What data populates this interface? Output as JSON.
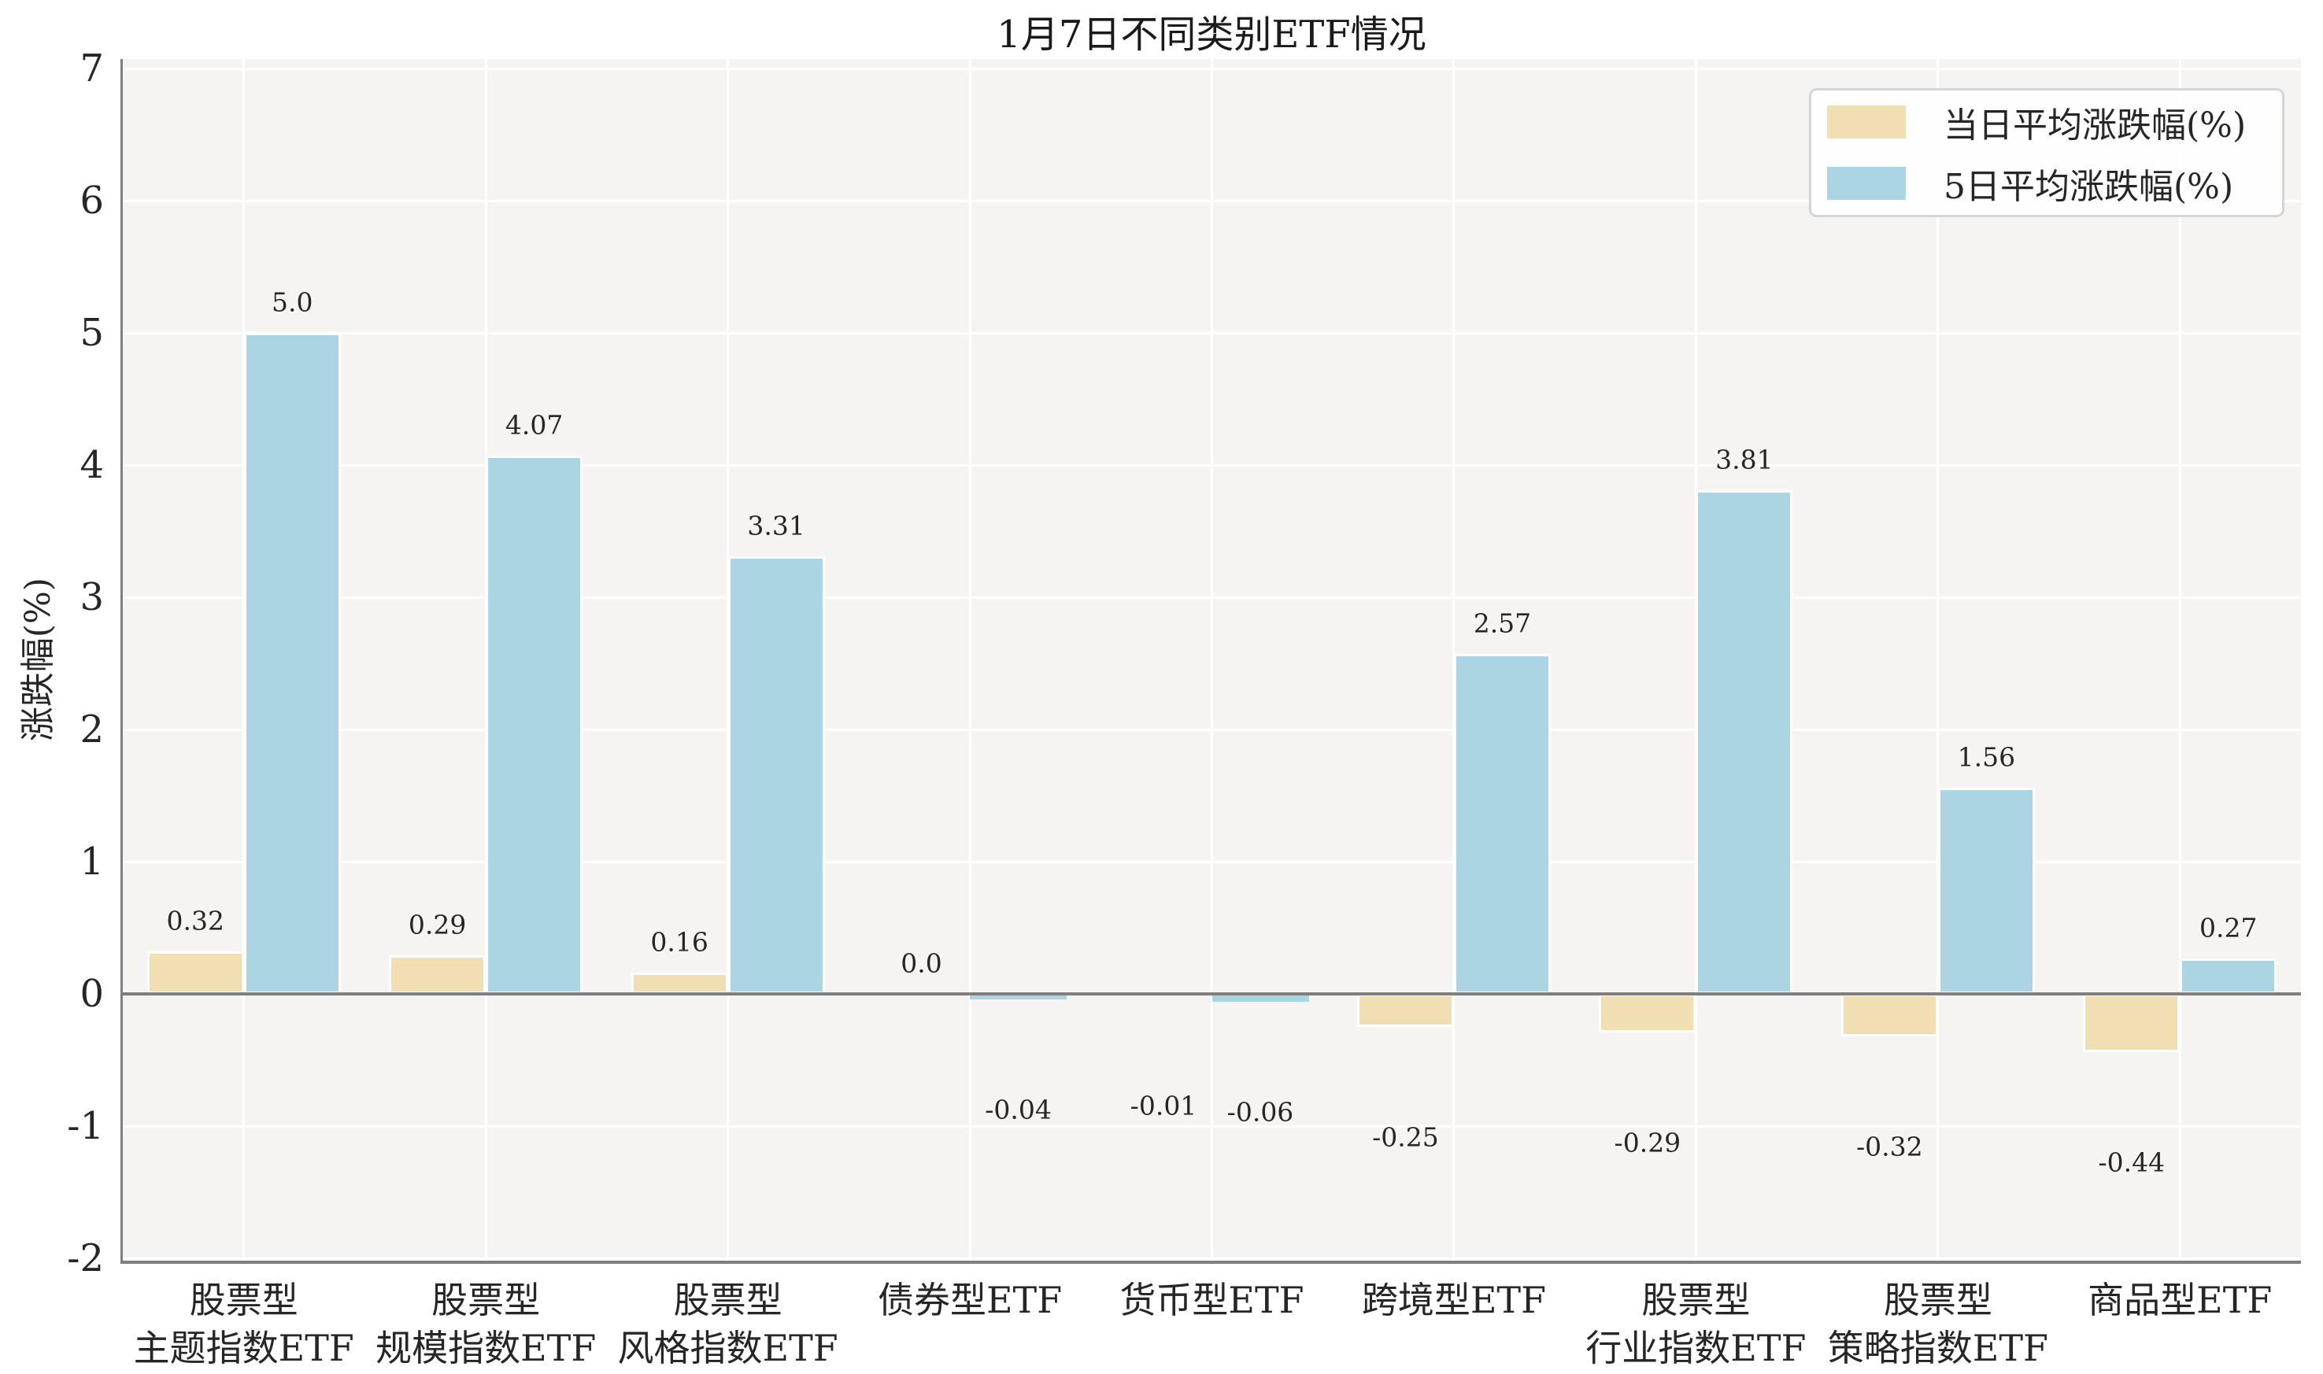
{
  "chart_data": {
    "type": "bar",
    "title": "1月7日不同类别ETF情况",
    "ylabel": "涨跌幅(%)",
    "xlabel": "",
    "categories": [
      [
        "股票型",
        "主题指数ETF"
      ],
      [
        "股票型",
        "规模指数ETF"
      ],
      [
        "股票型",
        "风格指数ETF"
      ],
      [
        "债券型ETF"
      ],
      [
        "货币型ETF"
      ],
      [
        "跨境型ETF"
      ],
      [
        "股票型",
        "行业指数ETF"
      ],
      [
        "股票型",
        "策略指数ETF"
      ],
      [
        "商品型ETF"
      ]
    ],
    "series": [
      {
        "name": "当日平均涨跌幅(%)",
        "color": "#f2deb3",
        "values": [
          0.32,
          0.29,
          0.16,
          0.0,
          -0.01,
          -0.25,
          -0.29,
          -0.32,
          -0.44
        ],
        "labels": [
          "0.32",
          "0.29",
          "0.16",
          "0.0",
          "-0.01",
          "-0.25",
          "-0.29",
          "-0.32",
          "-0.44"
        ]
      },
      {
        "name": "5日平均涨跌幅(%)",
        "color": "#abd5e3",
        "values": [
          5.0,
          4.07,
          3.31,
          -0.04,
          -0.06,
          2.57,
          3.81,
          1.56,
          0.27
        ],
        "labels": [
          "5.0",
          "4.07",
          "3.31",
          "-0.04",
          "-0.06",
          "2.57",
          "3.81",
          "1.56",
          "0.27"
        ]
      }
    ],
    "yticks": [
      -2,
      -1,
      0,
      1,
      2,
      3,
      4,
      5,
      6,
      7
    ],
    "ylim": [
      -2.02,
      7.07
    ],
    "grid": true,
    "legend_position": "upper right"
  },
  "style": {
    "plot_background": "#f5f4f2",
    "figure_background": "#ffffff",
    "grid_color": "#ffffff",
    "axis_color": "#7f7f7f",
    "text_color": "#262626",
    "series_day_color": "#f2deb3",
    "series_5day_color": "#abd5e3"
  }
}
